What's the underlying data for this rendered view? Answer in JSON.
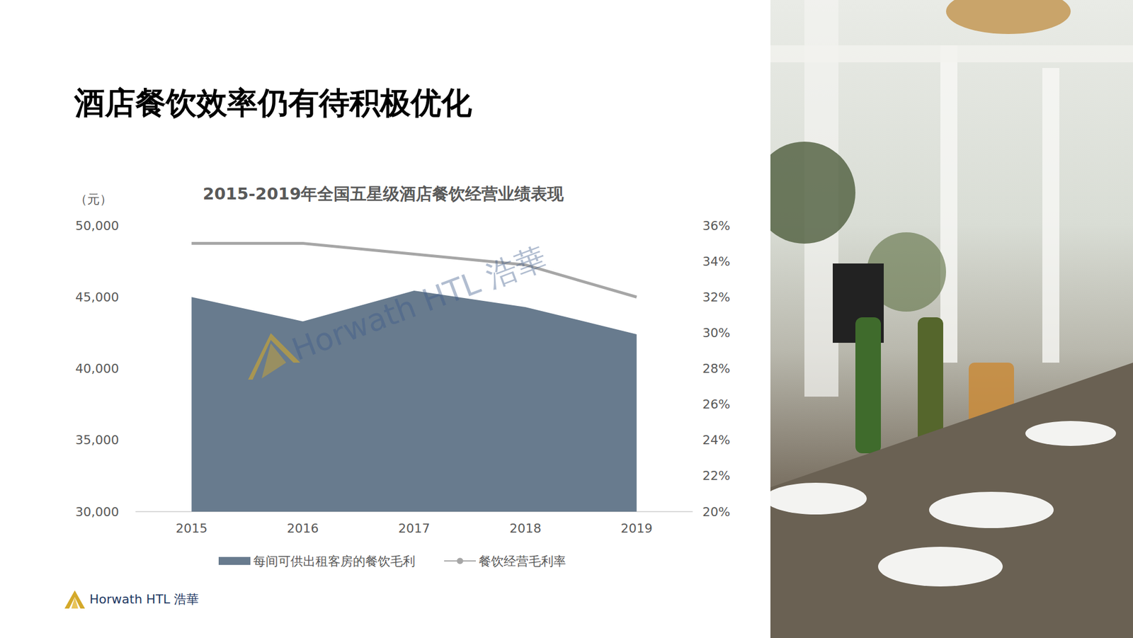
{
  "page": {
    "title": "酒店餐饮效率仍有待积极优化",
    "watermark": "Horwath HTL 浩華",
    "footer": "Horwath HTL 浩華"
  },
  "chart_data": {
    "type": "line",
    "title": "2015-2019年全国五星级酒店餐饮经营业绩表现",
    "ylabel": "（元）",
    "categories": [
      "2015",
      "2016",
      "2017",
      "2018",
      "2019"
    ],
    "series": [
      {
        "name": "每间可供出租客房的餐饮毛利",
        "type": "area",
        "color": "#687b8e",
        "values": [
          45000,
          43300,
          45450,
          44300,
          42400
        ]
      },
      {
        "name": "餐饮经营毛利率",
        "type": "line",
        "color": "#a6a6a6",
        "axis": "y2",
        "values": [
          35.0,
          35.0,
          34.4,
          33.8,
          32.0
        ]
      }
    ],
    "ylim": [
      30000,
      50000
    ],
    "yticks": [
      {
        "value": 30000,
        "label": "30,000"
      },
      {
        "value": 35000,
        "label": "35,000"
      },
      {
        "value": 40000,
        "label": "40,000"
      },
      {
        "value": 45000,
        "label": "45,000"
      },
      {
        "value": 50000,
        "label": "50,000"
      }
    ],
    "y2lim": [
      20,
      36
    ],
    "y2ticks": [
      {
        "value": 20,
        "label": "20%"
      },
      {
        "value": 22,
        "label": "22%"
      },
      {
        "value": 24,
        "label": "24%"
      },
      {
        "value": 26,
        "label": "26%"
      },
      {
        "value": 28,
        "label": "28%"
      },
      {
        "value": 30,
        "label": "30%"
      },
      {
        "value": 32,
        "label": "32%"
      },
      {
        "value": 34,
        "label": "34%"
      },
      {
        "value": 36,
        "label": "36%"
      }
    ],
    "grid": false,
    "legend": "bottom"
  }
}
